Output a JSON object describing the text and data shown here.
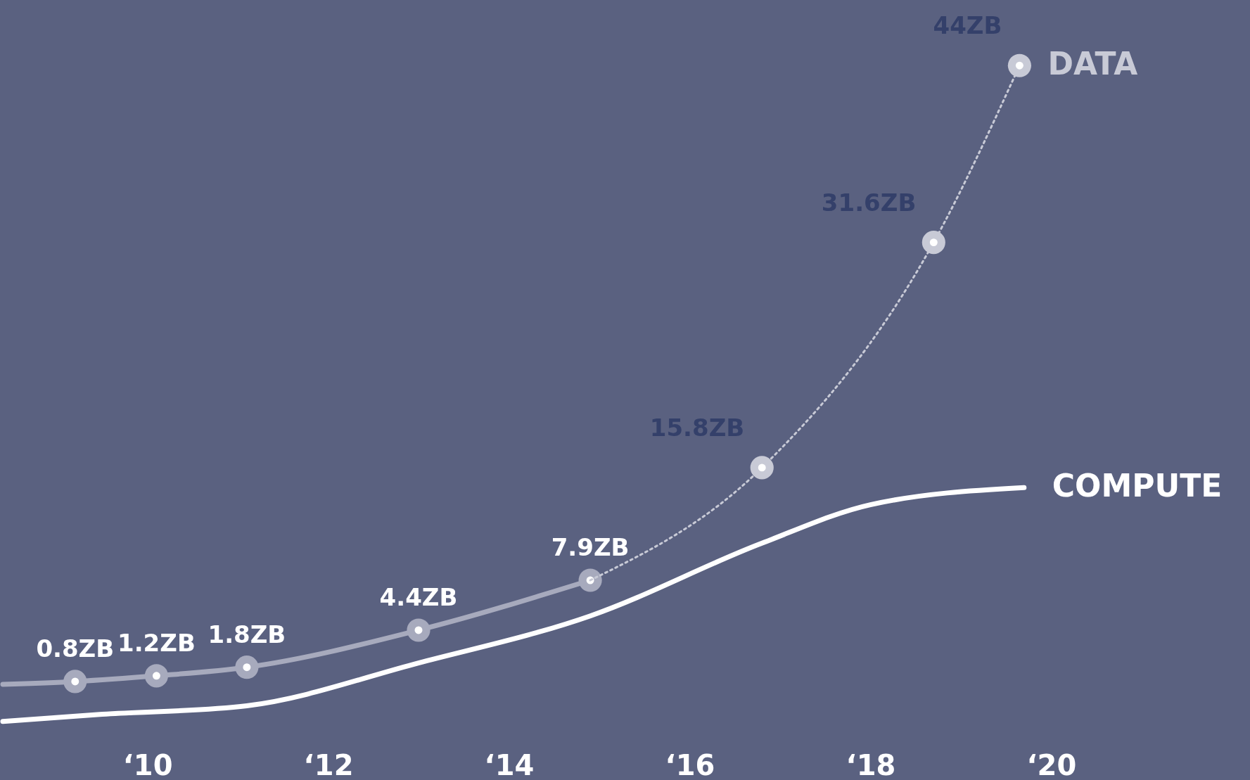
{
  "chart_data": {
    "type": "line",
    "xlim": [
      8.4,
      22.2
    ],
    "xticks": [
      {
        "value": 10,
        "label": "‘10"
      },
      {
        "value": 12,
        "label": "‘12"
      },
      {
        "value": 14,
        "label": "‘14"
      },
      {
        "value": 16,
        "label": "‘16"
      },
      {
        "value": 18,
        "label": "‘18"
      },
      {
        "value": 20,
        "label": "‘20"
      }
    ],
    "tick_labels": "x",
    "grid": false,
    "series": [
      {
        "color": "#a7aabd",
        "line_style": "solid",
        "marker": "circle",
        "x": [
          8.4,
          9.2,
          10.1,
          11.1,
          13.0,
          14.9
        ],
        "values": [
          0.6,
          0.8,
          1.2,
          1.8,
          4.4,
          7.9
        ],
        "value_labels": [
          null,
          "0.8ZB",
          "1.2ZB",
          "1.8ZB",
          "4.4ZB",
          "7.9ZB"
        ]
      },
      {
        "name": "DATA",
        "color": "#c8cad6",
        "line_style": "dotted",
        "marker": "circle",
        "x": [
          14.9,
          16.8,
          18.7,
          19.65
        ],
        "values": [
          7.9,
          15.8,
          31.6,
          44
        ],
        "value_labels": [
          null,
          "15.8ZB",
          "31.6ZB",
          "44ZB"
        ]
      },
      {
        "name": "COMPUTE",
        "color": "#ffffff",
        "line_style": "solid",
        "marker": "none",
        "x": [
          8.4,
          9.5,
          11.1,
          13.0,
          14.9,
          16.8,
          18.0,
          19.7
        ],
        "values": [
          -2.0,
          -1.5,
          -0.9,
          2.1,
          5.4,
          10.5,
          13.2,
          14.4
        ]
      }
    ]
  }
}
